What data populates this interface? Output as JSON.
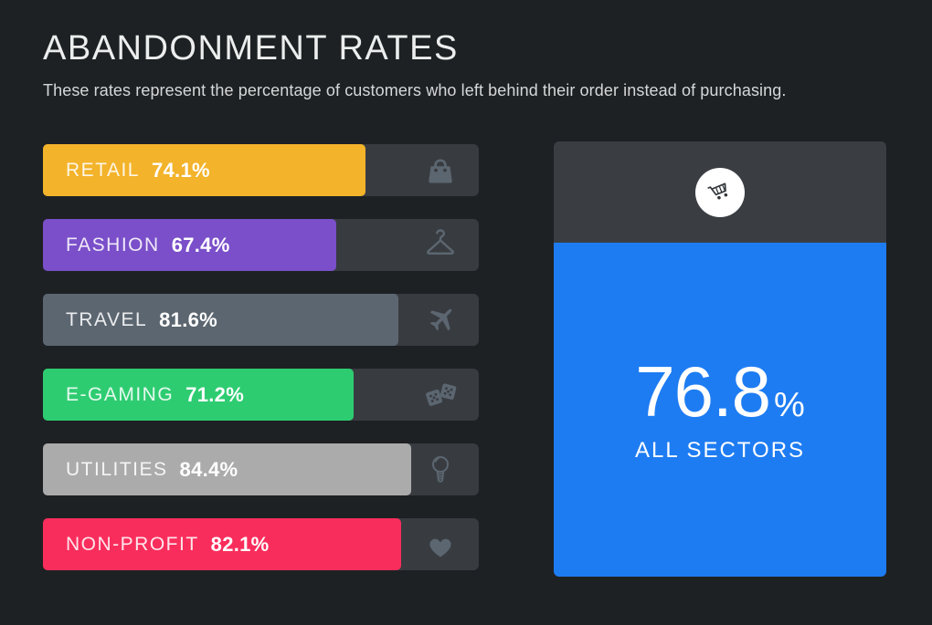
{
  "page": {
    "title": "ABANDONMENT RATES",
    "subtitle": "These rates represent the percentage of customers who left behind their order instead of purchasing."
  },
  "chart_data": {
    "type": "bar",
    "orientation": "horizontal",
    "title": "ABANDONMENT RATES",
    "subtitle": "These rates represent the percentage of customers who left behind their order instead of purchasing.",
    "unit": "%",
    "axis_range": [
      0,
      100
    ],
    "grid": false,
    "legend": false,
    "categories": [
      "RETAIL",
      "FASHION",
      "TRAVEL",
      "E-GAMING",
      "UTILITIES",
      "NON-PROFIT"
    ],
    "values": [
      74.1,
      67.4,
      81.6,
      71.2,
      84.4,
      82.1
    ],
    "bar_colors": [
      "#F3B32A",
      "#7A4FC9",
      "#5C6670",
      "#2ECC71",
      "#ABABAB",
      "#F92D5C"
    ],
    "category_icons": [
      "shopping-bag",
      "hanger",
      "airplane",
      "dice",
      "light-bulb",
      "heart"
    ],
    "summary": {
      "label": "ALL SECTORS",
      "value": 76.8,
      "unit": "%",
      "icon": "abandoned-cart"
    }
  },
  "sectors": [
    {
      "label": "RETAIL",
      "value": 74.1,
      "value_label": "74.1%",
      "color": "#F3B32A",
      "icon": "shopping-bag"
    },
    {
      "label": "FASHION",
      "value": 67.4,
      "value_label": "67.4%",
      "color": "#7A4FC9",
      "icon": "hanger"
    },
    {
      "label": "TRAVEL",
      "value": 81.6,
      "value_label": "81.6%",
      "color": "#5C6670",
      "icon": "airplane"
    },
    {
      "label": "E-GAMING",
      "value": 71.2,
      "value_label": "71.2%",
      "color": "#2ECC71",
      "icon": "dice"
    },
    {
      "label": "UTILITIES",
      "value": 84.4,
      "value_label": "84.4%",
      "color": "#ABABAB",
      "icon": "light-bulb"
    },
    {
      "label": "NON-PROFIT",
      "value": 82.1,
      "value_label": "82.1%",
      "color": "#F92D5C",
      "icon": "heart"
    }
  ],
  "summary_card": {
    "value": "76.8",
    "unit": "%",
    "label": "ALL SECTORS",
    "icon": "abandoned-cart",
    "accent_color": "#1E7CF2"
  },
  "colors": {
    "background": "#1D2124",
    "track": "#383C41",
    "icon_gray": "#5C6670",
    "card_top": "#3A3E43",
    "accent_blue": "#1E7CF2"
  }
}
